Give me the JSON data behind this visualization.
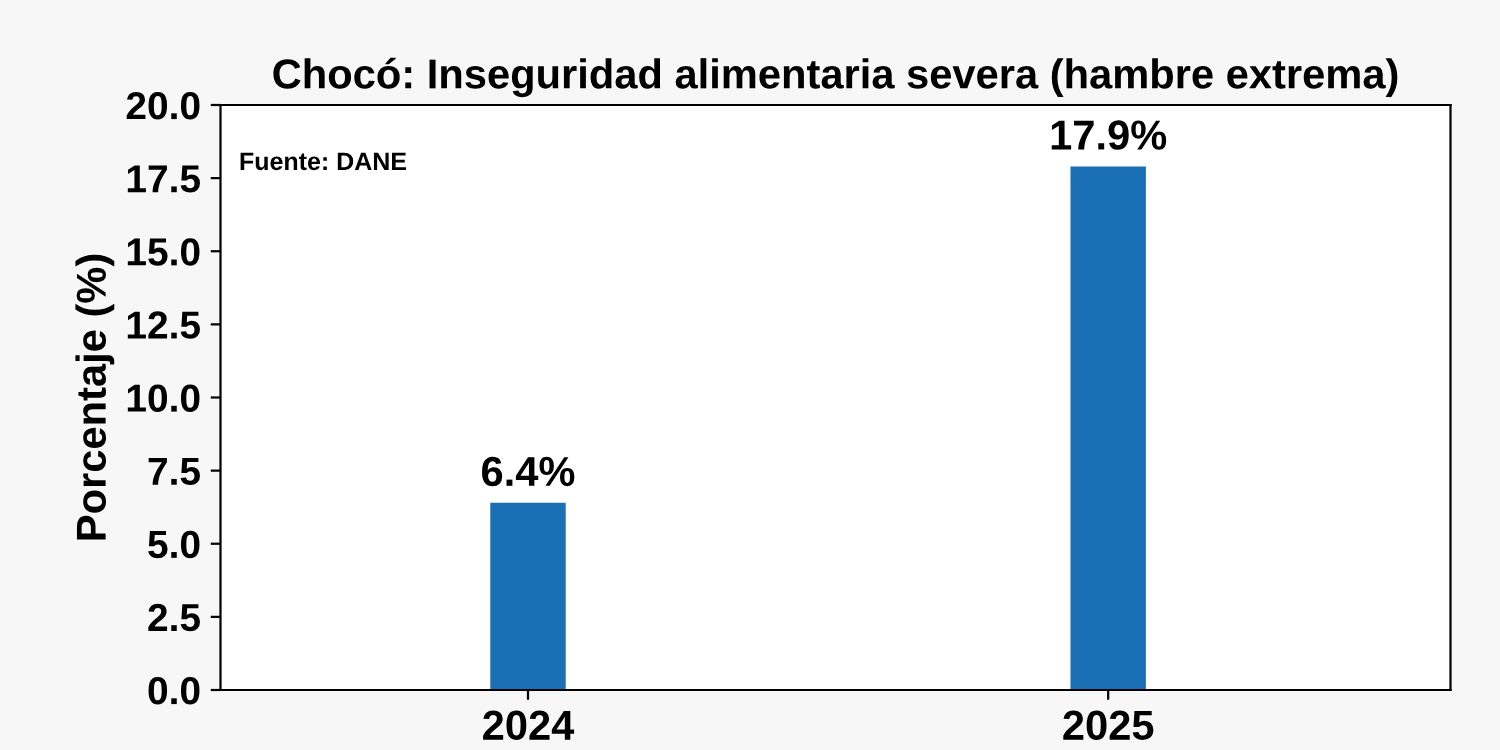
{
  "chart_data": {
    "type": "bar",
    "title": "Chocó: Inseguridad alimentaria severa (hambre extrema)",
    "ylabel": "Porcentaje (%)",
    "categories": [
      "2024",
      "2025"
    ],
    "values": [
      6.4,
      17.9
    ],
    "value_labels": [
      "6.4%",
      "17.9%"
    ],
    "color": "#1a6fb5",
    "ylim": [
      0,
      20
    ],
    "yticks": [
      {
        "value": 0,
        "label": "0.0"
      },
      2.5,
      {
        "value": 5,
        "label": "5.0"
      },
      7.5,
      {
        "value": 10,
        "label": "10.0"
      },
      12.5,
      {
        "value": 15,
        "label": "15.0"
      },
      17.5,
      {
        "value": 20,
        "label": "20.0"
      }
    ],
    "grid": false,
    "annotations": [
      "Fuente: DANE"
    ]
  }
}
